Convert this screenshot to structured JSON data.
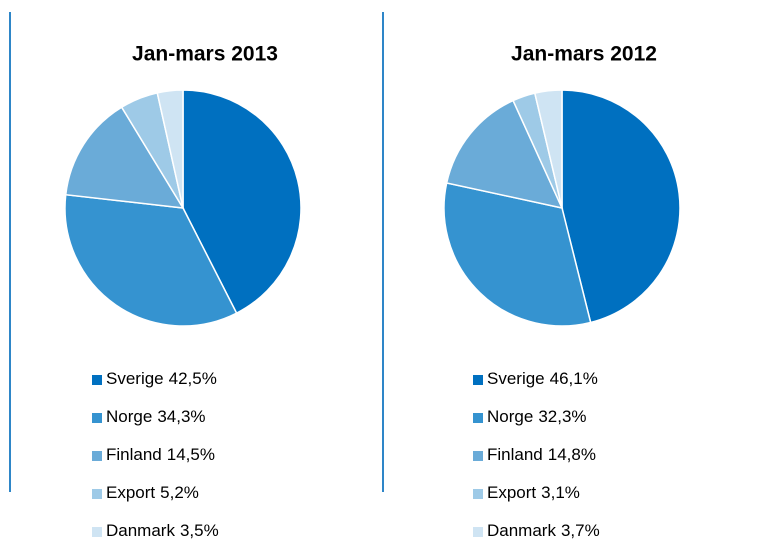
{
  "chart_data": [
    {
      "type": "pie",
      "title": "Jan-mars 2013",
      "categories": [
        "Sverige",
        "Norge",
        "Finland",
        "Export",
        "Danmark"
      ],
      "values": [
        42.5,
        34.3,
        14.5,
        5.2,
        3.5
      ],
      "value_labels": [
        "42,5%",
        "34,3%",
        "14,5%",
        "5,2%",
        "3,5%"
      ],
      "colors": [
        "#0070c0",
        "#3593d0",
        "#6aabd8",
        "#9ecae7",
        "#cfe4f3"
      ]
    },
    {
      "type": "pie",
      "title": "Jan-mars 2012",
      "categories": [
        "Sverige",
        "Norge",
        "Finland",
        "Export",
        "Danmark"
      ],
      "values": [
        46.1,
        32.3,
        14.8,
        3.1,
        3.7
      ],
      "value_labels": [
        "46,1%",
        "32,3%",
        "14,8%",
        "3,1%",
        "3,7%"
      ],
      "colors": [
        "#0070c0",
        "#3593d0",
        "#6aabd8",
        "#9ecae7",
        "#cfe4f3"
      ]
    }
  ]
}
